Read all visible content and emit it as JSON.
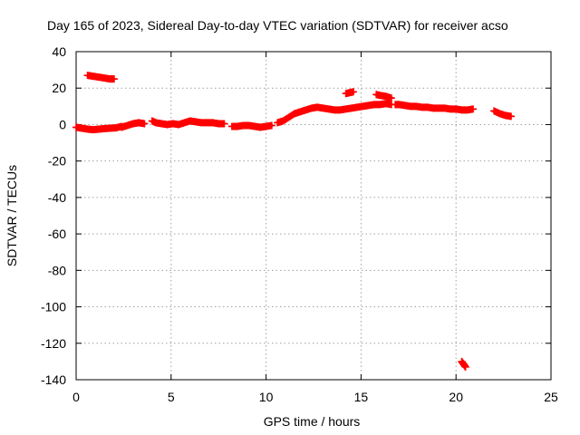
{
  "chart_data": {
    "type": "scatter",
    "title": "Day 165 of 2023, Sidereal Day-to-day VTEC variation (SDTVAR) for receiver acso",
    "xlabel": "GPS time / hours",
    "ylabel": "SDTVAR / TECUs",
    "xlim": [
      0,
      25
    ],
    "ylim": [
      -140,
      40
    ],
    "xticks": [
      0,
      5,
      10,
      15,
      20,
      25
    ],
    "yticks": [
      -140,
      -120,
      -100,
      -80,
      -60,
      -40,
      -20,
      0,
      20,
      40
    ],
    "xtick_labels": [
      "0",
      "5",
      "10",
      "15",
      "20",
      "25"
    ],
    "ytick_labels": [
      "-140",
      "-120",
      "-100",
      "-80",
      "-60",
      "-40",
      "-20",
      "0",
      "20",
      "40"
    ],
    "grid": true,
    "marker": "plus",
    "series_color": "#ff0000",
    "segments": [
      {
        "x": [
          0.0,
          0.3,
          0.6,
          0.9,
          1.2,
          1.5,
          1.8,
          2.1,
          2.4
        ],
        "y": [
          -1.5,
          -2.0,
          -2.5,
          -2.8,
          -2.5,
          -2.2,
          -2.0,
          -1.8,
          -1.0
        ]
      },
      {
        "x": [
          0.6,
          0.9,
          1.2,
          1.5,
          1.8,
          2.0
        ],
        "y": [
          27.0,
          26.5,
          26.0,
          25.5,
          25.0,
          25.0
        ]
      },
      {
        "x": [
          2.4,
          2.7,
          3.0,
          3.3,
          3.6
        ],
        "y": [
          -1.5,
          -0.5,
          0.5,
          1.0,
          0.5
        ]
      },
      {
        "x": [
          4.0,
          4.2,
          4.5,
          4.8,
          5.1,
          5.4,
          5.7,
          6.0,
          6.3,
          6.6,
          6.9,
          7.2,
          7.5,
          7.8
        ],
        "y": [
          2.0,
          1.0,
          0.5,
          0.0,
          0.5,
          0.0,
          1.0,
          2.0,
          1.5,
          1.0,
          1.0,
          1.0,
          0.5,
          0.5
        ]
      },
      {
        "x": [
          8.2,
          8.5,
          8.8,
          9.1,
          9.4,
          9.7,
          10.0,
          10.3
        ],
        "y": [
          -1.0,
          -1.0,
          -0.5,
          -0.5,
          -1.0,
          -1.5,
          -1.0,
          -0.5
        ]
      },
      {
        "x": [
          10.6,
          10.9,
          11.2,
          11.5,
          11.8,
          12.1,
          12.4,
          12.7,
          13.0,
          13.3,
          13.6,
          13.9,
          14.2,
          14.5,
          14.8,
          15.1,
          15.4,
          15.7,
          16.0,
          16.3,
          16.6
        ],
        "y": [
          1.0,
          2.0,
          4.0,
          6.0,
          7.0,
          8.0,
          9.0,
          9.5,
          9.0,
          8.5,
          8.0,
          8.0,
          8.5,
          9.0,
          9.5,
          10.0,
          10.5,
          11.0,
          11.0,
          11.5,
          11.0
        ]
      },
      {
        "x": [
          14.2,
          14.4,
          14.6
        ],
        "y": [
          17.0,
          17.5,
          18.0
        ]
      },
      {
        "x": [
          15.8,
          16.0,
          16.3,
          16.6
        ],
        "y": [
          16.5,
          16.0,
          15.5,
          14.5
        ]
      },
      {
        "x": [
          16.8,
          17.0,
          17.3,
          17.6,
          17.9,
          18.2,
          18.5,
          18.8,
          19.1,
          19.4,
          19.7,
          20.0,
          20.3,
          20.6,
          20.9
        ],
        "y": [
          11.0,
          11.0,
          10.5,
          10.0,
          10.0,
          9.5,
          9.5,
          9.0,
          9.0,
          9.0,
          8.5,
          8.5,
          8.0,
          8.0,
          8.5
        ]
      },
      {
        "x": [
          22.0,
          22.3,
          22.6,
          22.9
        ],
        "y": [
          7.5,
          6.0,
          5.0,
          4.5
        ]
      },
      {
        "x": [
          20.3,
          20.4,
          20.5
        ],
        "y": [
          -130.0,
          -131.5,
          -133.0
        ]
      }
    ]
  }
}
